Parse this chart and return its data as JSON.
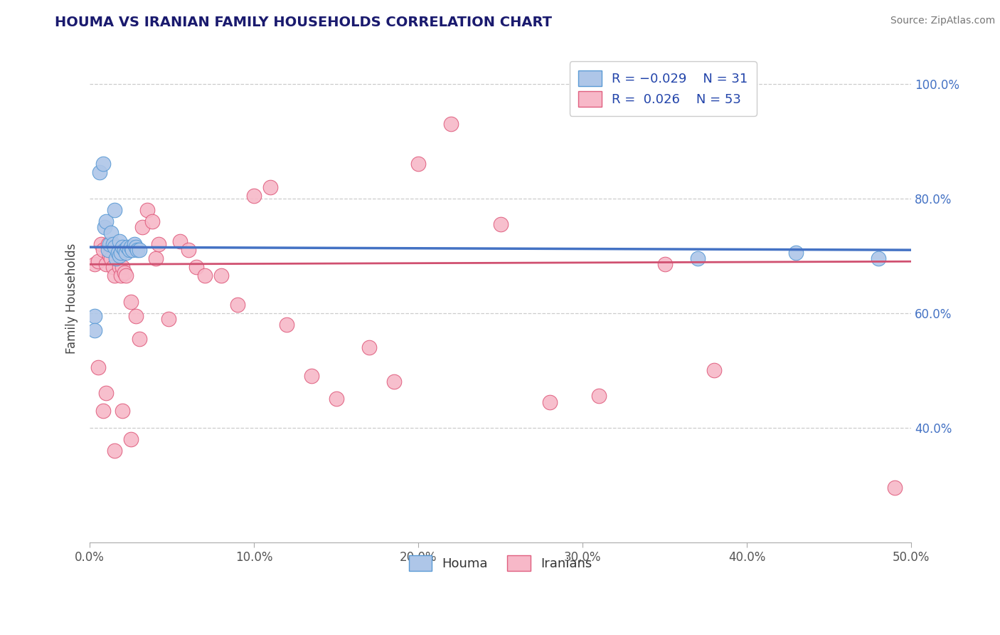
{
  "title": "HOUMA VS IRANIAN FAMILY HOUSEHOLDS CORRELATION CHART",
  "source_text": "Source: ZipAtlas.com",
  "ylabel": "Family Households",
  "xlim": [
    0.0,
    0.5
  ],
  "ylim": [
    0.2,
    1.05
  ],
  "xtick_labels": [
    "0.0%",
    "10.0%",
    "20.0%",
    "30.0%",
    "40.0%",
    "50.0%"
  ],
  "xtick_vals": [
    0.0,
    0.1,
    0.2,
    0.3,
    0.4,
    0.5
  ],
  "ytick_labels": [
    "40.0%",
    "60.0%",
    "80.0%",
    "100.0%"
  ],
  "ytick_vals": [
    0.4,
    0.6,
    0.8,
    1.0
  ],
  "houma_color": "#aec6e8",
  "iranian_color": "#f7b8c8",
  "houma_edge": "#5b9bd5",
  "iranian_edge": "#e06080",
  "line_houma": "#4472c4",
  "line_iranian": "#d05070",
  "houma_x": [
    0.003,
    0.006,
    0.008,
    0.009,
    0.01,
    0.011,
    0.012,
    0.013,
    0.014,
    0.015,
    0.015,
    0.016,
    0.017,
    0.018,
    0.018,
    0.019,
    0.02,
    0.021,
    0.022,
    0.023,
    0.024,
    0.025,
    0.026,
    0.027,
    0.028,
    0.029,
    0.03,
    0.003,
    0.37,
    0.43,
    0.48
  ],
  "houma_y": [
    0.595,
    0.845,
    0.86,
    0.75,
    0.76,
    0.71,
    0.72,
    0.74,
    0.72,
    0.715,
    0.78,
    0.695,
    0.705,
    0.7,
    0.725,
    0.705,
    0.715,
    0.71,
    0.705,
    0.715,
    0.71,
    0.715,
    0.71,
    0.72,
    0.715,
    0.71,
    0.71,
    0.57,
    0.695,
    0.705,
    0.695
  ],
  "iranian_x": [
    0.003,
    0.005,
    0.007,
    0.008,
    0.01,
    0.011,
    0.012,
    0.013,
    0.014,
    0.015,
    0.016,
    0.018,
    0.019,
    0.02,
    0.021,
    0.022,
    0.025,
    0.025,
    0.028,
    0.03,
    0.032,
    0.035,
    0.038,
    0.04,
    0.042,
    0.048,
    0.055,
    0.06,
    0.065,
    0.07,
    0.08,
    0.09,
    0.1,
    0.11,
    0.12,
    0.135,
    0.15,
    0.17,
    0.185,
    0.2,
    0.22,
    0.25,
    0.28,
    0.31,
    0.35,
    0.38,
    0.005,
    0.008,
    0.01,
    0.015,
    0.02,
    0.025,
    0.49
  ],
  "iranian_y": [
    0.685,
    0.69,
    0.72,
    0.71,
    0.685,
    0.72,
    0.7,
    0.695,
    0.68,
    0.665,
    0.715,
    0.68,
    0.665,
    0.68,
    0.67,
    0.665,
    0.62,
    0.715,
    0.595,
    0.555,
    0.75,
    0.78,
    0.76,
    0.695,
    0.72,
    0.59,
    0.725,
    0.71,
    0.68,
    0.665,
    0.665,
    0.615,
    0.805,
    0.82,
    0.58,
    0.49,
    0.45,
    0.54,
    0.48,
    0.86,
    0.93,
    0.755,
    0.445,
    0.455,
    0.685,
    0.5,
    0.505,
    0.43,
    0.46,
    0.36,
    0.43,
    0.38,
    0.295
  ]
}
